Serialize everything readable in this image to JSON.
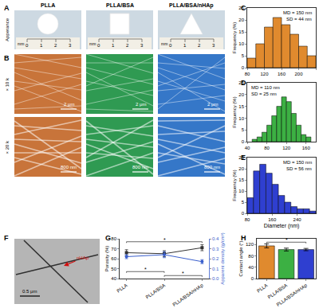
{
  "panel_labels": [
    "A",
    "B",
    "C",
    "D",
    "E",
    "F",
    "G",
    "H"
  ],
  "columns": [
    "PLLA",
    "PLLA/BSA",
    "PLLA/BSA/nHAp"
  ],
  "column_colors": [
    "#c8743a",
    "#2f9a52",
    "#3577c8"
  ],
  "appearance_label": "Apperance",
  "ruler": {
    "unit": "mm",
    "ticks": [
      0,
      1,
      2,
      3
    ]
  },
  "sem_rows": [
    {
      "label": "× 10 k",
      "scale_bar": "2 μm"
    },
    {
      "label": "× 20 k",
      "scale_bar": "800 nm"
    }
  ],
  "tem": {
    "scale_bar": "0.5 μm",
    "arrow_label": "nHAp"
  },
  "chart_data": [
    {
      "type": "histogram",
      "ylabel": "Frequency (%)",
      "color": "#e08a2e",
      "bins": [
        80,
        100,
        120,
        140,
        160,
        180,
        200,
        220,
        240
      ],
      "values": [
        4,
        10,
        17,
        21,
        18,
        14,
        9,
        5
      ],
      "xlim": [
        80,
        240
      ],
      "xticks": [
        80,
        120,
        160,
        200,
        240
      ],
      "ylim": [
        0,
        25
      ],
      "yticks": [
        0,
        5,
        10,
        15,
        20,
        25
      ],
      "annotations": [
        "MD = 150 nm",
        "SD = 44 nm"
      ]
    },
    {
      "type": "histogram",
      "ylabel": "Frequency (%)",
      "color": "#3cb043",
      "bins": [
        50,
        60,
        70,
        80,
        90,
        100,
        110,
        120,
        130,
        140,
        150,
        160,
        170
      ],
      "values": [
        1,
        2,
        4,
        7,
        11,
        15,
        19,
        17,
        12,
        7,
        3,
        2
      ],
      "xlim": [
        40,
        180
      ],
      "xticks": [
        40,
        80,
        120,
        160
      ],
      "ylim": [
        0,
        25
      ],
      "yticks": [
        0,
        5,
        10,
        15,
        20,
        25
      ],
      "annotations": [
        "MD = 110 nm",
        "SD = 25 nm"
      ]
    },
    {
      "type": "histogram",
      "ylabel": "Frequency (%)",
      "xlabel": "Diameter (nm)",
      "color": "#2f3fd0",
      "bins": [
        80,
        100,
        120,
        140,
        160,
        180,
        200,
        220,
        240,
        260,
        280,
        300
      ],
      "values": [
        7,
        19,
        22,
        18,
        13,
        8,
        5,
        3,
        2,
        2,
        1
      ],
      "xlim": [
        80,
        300
      ],
      "xticks": [
        80,
        160,
        240
      ],
      "ylim": [
        0,
        25
      ],
      "yticks": [
        0,
        5,
        10,
        15,
        20,
        25
      ],
      "annotations": [
        "MD = 150 nm",
        "SD = 56 nm"
      ]
    },
    {
      "type": "line",
      "ylabel": "Porosity (%)",
      "y2label": "Apparent density (g/cm³)",
      "categories": [
        "PLLA",
        "PLLA/BSA",
        "PLLA/BSA/nHAp"
      ],
      "series": [
        {
          "name": "Porosity",
          "color": "#333333",
          "marker": "square",
          "values": [
            66,
            65,
            71
          ],
          "error": [
            3,
            3,
            3
          ]
        },
        {
          "name": "Apparent density",
          "color": "#3a5fcd",
          "marker": "circle",
          "axis": "y2",
          "values": [
            0.22,
            0.24,
            0.17
          ],
          "error": [
            0.02,
            0.03,
            0.02
          ]
        }
      ],
      "ylim": [
        40,
        80
      ],
      "yticks": [
        40,
        50,
        60,
        70,
        80
      ],
      "y2lim": [
        0,
        0.4
      ],
      "y2ticks": [
        {
          "value": 0,
          "label": "0.0"
        },
        0.1,
        0.2,
        0.3,
        0.4
      ],
      "annotations": [
        {
          "text": "*",
          "between": [
            "PLLA",
            "PLLA/BSA/nHAp"
          ],
          "y": 77
        },
        {
          "text": "*",
          "between": [
            "PLLA",
            "PLLA/BSA"
          ],
          "y": 47
        },
        {
          "text": "*",
          "between": [
            "PLLA/BSA",
            "PLLA/BSA/nHAp"
          ],
          "y": 43
        }
      ]
    },
    {
      "type": "bar",
      "ylabel": "Contact angle (°)",
      "categories": [
        "PLLA",
        "PLLA/BSA",
        "PLLA/BSA/nHAp"
      ],
      "values": [
        115,
        102,
        102
      ],
      "error": [
        7,
        5,
        4
      ],
      "colors": [
        "#e08a2e",
        "#3cb043",
        "#2f3fd0"
      ],
      "ylim": [
        0,
        140
      ],
      "yticks": [
        0,
        40,
        80,
        120
      ],
      "annotations": [
        {
          "text": "*",
          "between": [
            "PLLA",
            "PLLA/BSA/nHAp"
          ],
          "y": 128
        }
      ]
    }
  ]
}
